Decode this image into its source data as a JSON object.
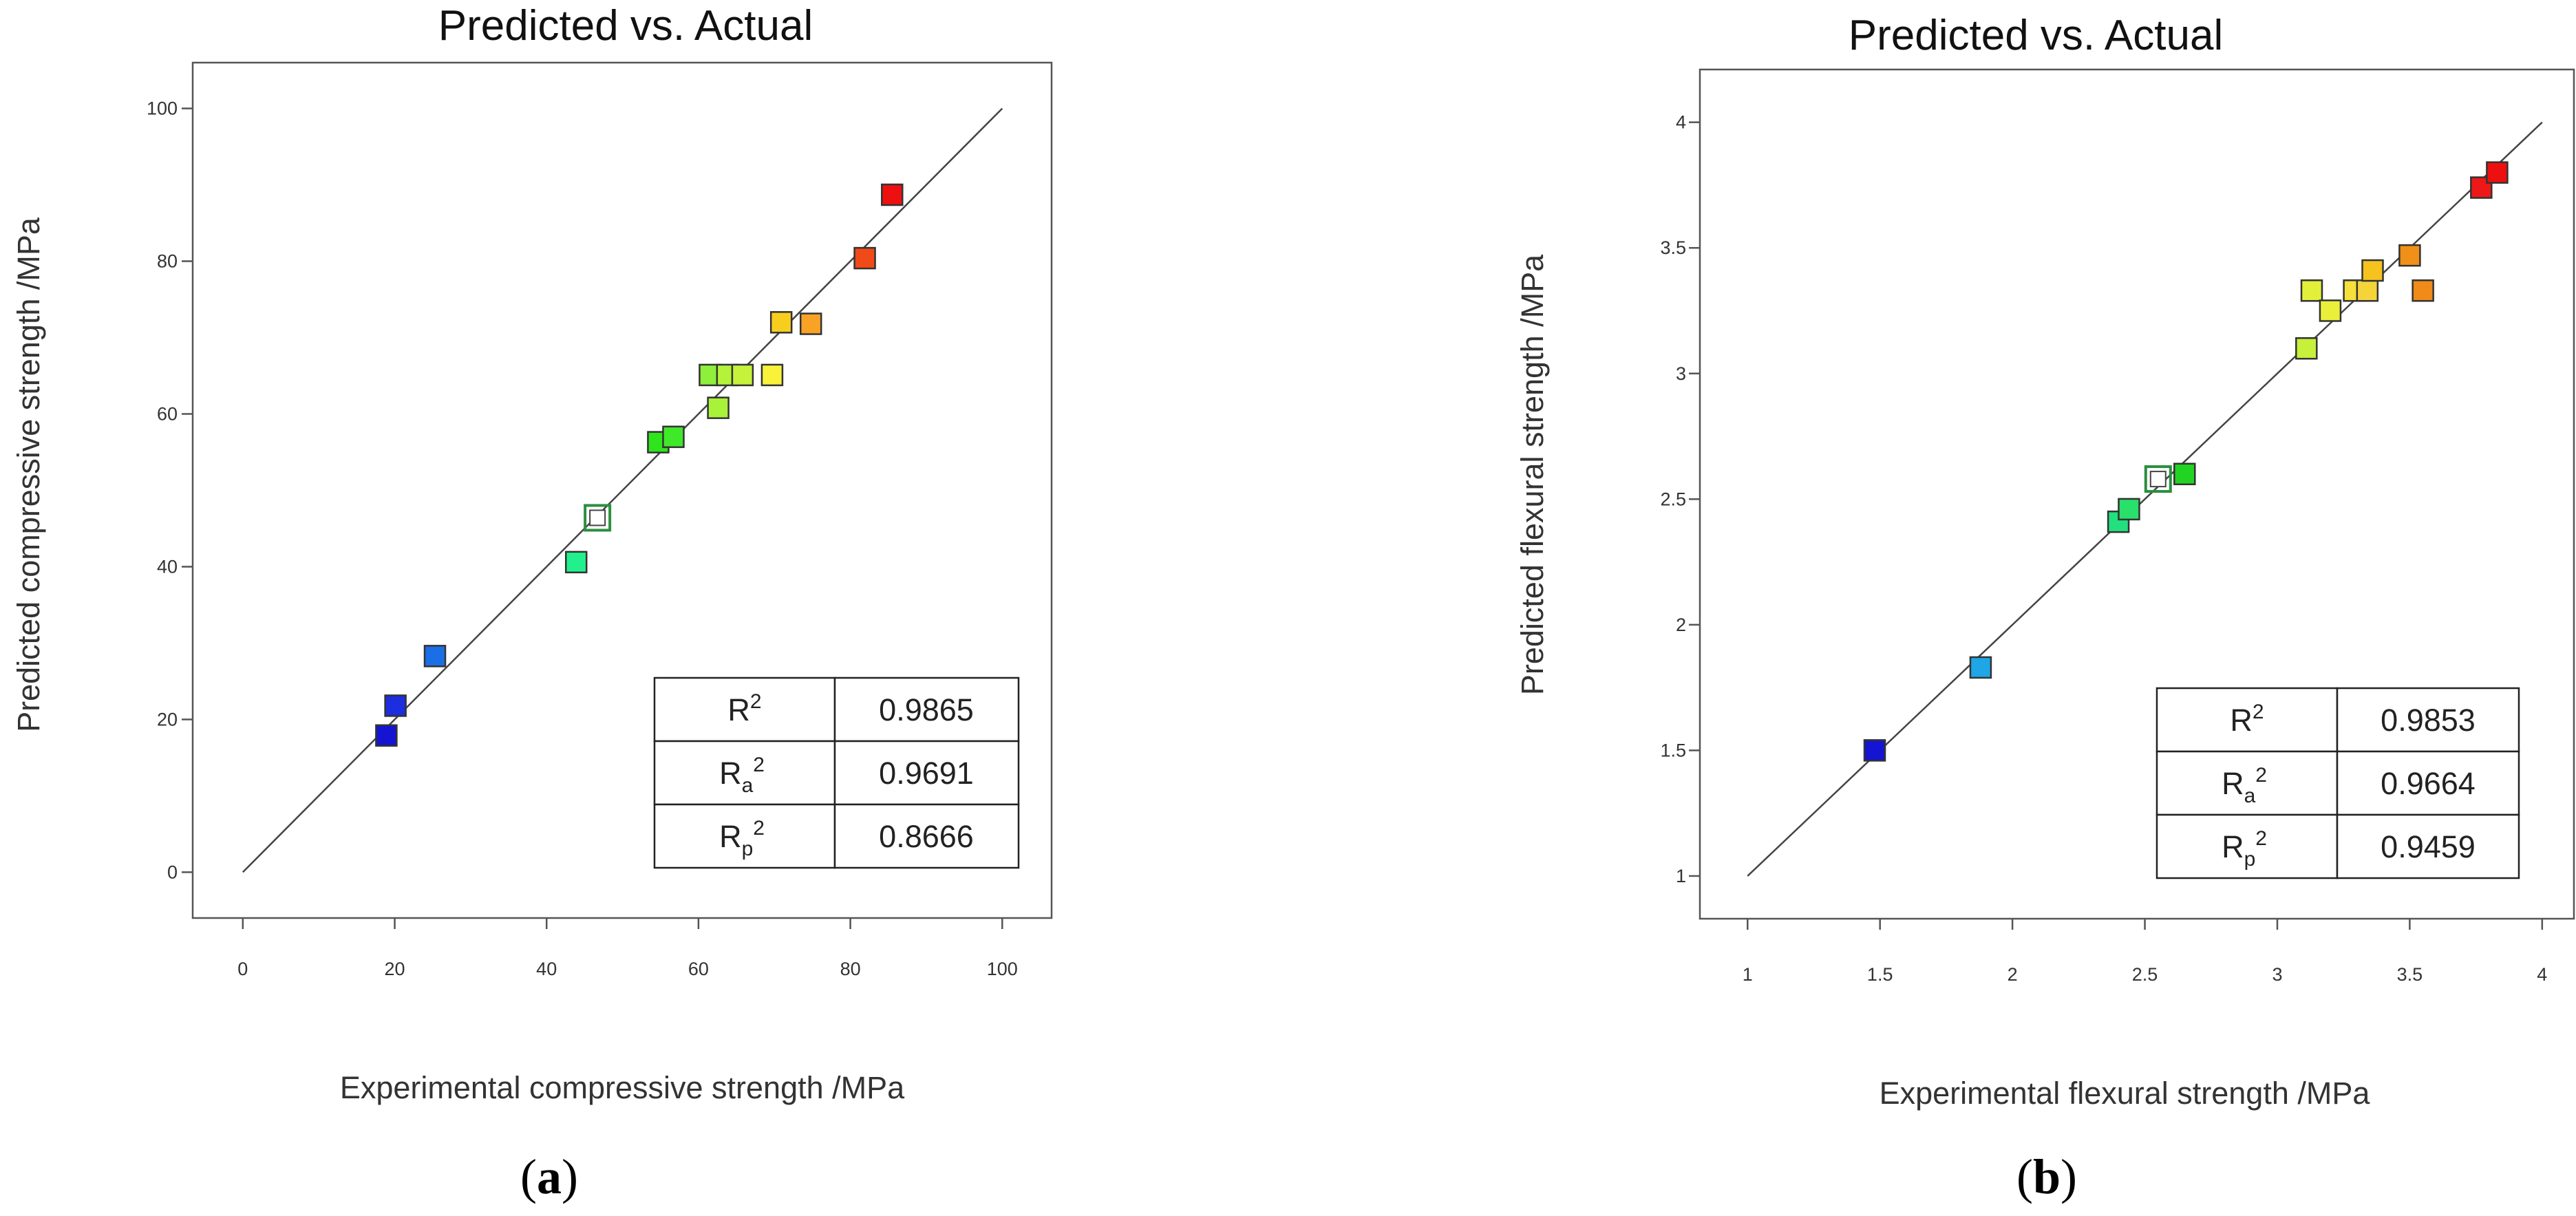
{
  "chart_data": [
    {
      "type": "scatter",
      "title": "Predicted vs. Actual",
      "xlabel": "Experimental compressive strength /MPa",
      "ylabel": "Predicted  compressive strength /MPa",
      "xlim": [
        -6.6,
        106.5
      ],
      "ylim": [
        -6.0,
        106.0
      ],
      "xticks": [
        0,
        20,
        40,
        60,
        80,
        100
      ],
      "yticks": [
        0,
        20,
        40,
        60,
        80,
        100
      ],
      "tick_labels": [
        "0",
        "20",
        "40",
        "60",
        "80",
        "100"
      ],
      "reference_line": [
        [
          0,
          0
        ],
        [
          100,
          100
        ]
      ],
      "points": [
        {
          "x": 18.9,
          "y": 17.9,
          "color": "#1414d2"
        },
        {
          "x": 20.1,
          "y": 21.8,
          "color": "#1c2ee0"
        },
        {
          "x": 25.3,
          "y": 28.3,
          "color": "#1b6fe6"
        },
        {
          "x": 43.9,
          "y": 40.6,
          "color": "#22f08c"
        },
        {
          "x": 54.7,
          "y": 56.3,
          "color": "#2ee41c"
        },
        {
          "x": 56.7,
          "y": 57.0,
          "color": "#40e82a"
        },
        {
          "x": 61.5,
          "y": 65.1,
          "color": "#8ef03a"
        },
        {
          "x": 62.6,
          "y": 60.8,
          "color": "#a9f23a"
        },
        {
          "x": 63.8,
          "y": 65.1,
          "color": "#b5f23a"
        },
        {
          "x": 65.8,
          "y": 65.1,
          "color": "#c5f23a"
        },
        {
          "x": 69.7,
          "y": 65.1,
          "color": "#f8f23a"
        },
        {
          "x": 70.9,
          "y": 72.0,
          "color": "#f8ce1e"
        },
        {
          "x": 74.8,
          "y": 71.8,
          "color": "#f8a226"
        },
        {
          "x": 81.9,
          "y": 80.4,
          "color": "#f04a18"
        },
        {
          "x": 85.5,
          "y": 88.7,
          "color": "#ee1010"
        }
      ],
      "highlight_point": {
        "x": 46.7,
        "y": 46.4,
        "color": "#2b8f3f"
      },
      "stats_table": [
        {
          "base": "R",
          "sub": "",
          "sup": "2",
          "value": "0.9865"
        },
        {
          "base": "R",
          "sub": "a",
          "sup": "2",
          "value": "0.9691"
        },
        {
          "base": "R",
          "sub": "p",
          "sup": "2",
          "value": "0.8666"
        }
      ],
      "panel_label": {
        "open": "(",
        "letter": "a",
        "close": ")"
      }
    },
    {
      "type": "scatter",
      "title": "Predicted vs. Actual",
      "xlabel": "Experimental flexural strength /MPa",
      "ylabel": "Predicted  flexural strength /MPa",
      "xlim": [
        0.82,
        4.12
      ],
      "ylim": [
        0.83,
        4.21
      ],
      "xticks": [
        1,
        1.5,
        2,
        2.5,
        3,
        3.5,
        4
      ],
      "yticks": [
        1,
        1.5,
        2,
        2.5,
        3,
        3.5,
        4
      ],
      "tick_labels": [
        "1",
        "1.5",
        "2",
        "2.5",
        "3",
        "3.5",
        "4"
      ],
      "reference_line": [
        [
          1,
          1
        ],
        [
          4,
          4
        ]
      ],
      "points": [
        {
          "x": 1.48,
          "y": 1.5,
          "color": "#1414d2"
        },
        {
          "x": 1.88,
          "y": 1.83,
          "color": "#1ea6e6"
        },
        {
          "x": 2.4,
          "y": 2.41,
          "color": "#22e07e"
        },
        {
          "x": 2.44,
          "y": 2.46,
          "color": "#28e06a"
        },
        {
          "x": 2.65,
          "y": 2.6,
          "color": "#22d422"
        },
        {
          "x": 3.11,
          "y": 3.1,
          "color": "#c6f03a"
        },
        {
          "x": 3.13,
          "y": 3.33,
          "color": "#e2f03a"
        },
        {
          "x": 3.2,
          "y": 3.25,
          "color": "#eaf03a"
        },
        {
          "x": 3.29,
          "y": 3.33,
          "color": "#f5e13a"
        },
        {
          "x": 3.34,
          "y": 3.33,
          "color": "#f5d43a"
        },
        {
          "x": 3.36,
          "y": 3.41,
          "color": "#f5c21e"
        },
        {
          "x": 3.5,
          "y": 3.47,
          "color": "#f09018"
        },
        {
          "x": 3.55,
          "y": 3.33,
          "color": "#f08a18"
        },
        {
          "x": 3.77,
          "y": 3.74,
          "color": "#ee1818"
        },
        {
          "x": 3.83,
          "y": 3.8,
          "color": "#ee1010"
        }
      ],
      "highlight_point": {
        "x": 2.55,
        "y": 2.58,
        "color": "#2b8f3f"
      },
      "stats_table": [
        {
          "base": "R",
          "sub": "",
          "sup": "2",
          "value": "0.9853"
        },
        {
          "base": "R",
          "sub": "a",
          "sup": "2",
          "value": "0.9664"
        },
        {
          "base": "R",
          "sub": "p",
          "sup": "2",
          "value": "0.9459"
        }
      ],
      "panel_label": {
        "open": "(",
        "letter": "b",
        "close": ")"
      }
    }
  ]
}
